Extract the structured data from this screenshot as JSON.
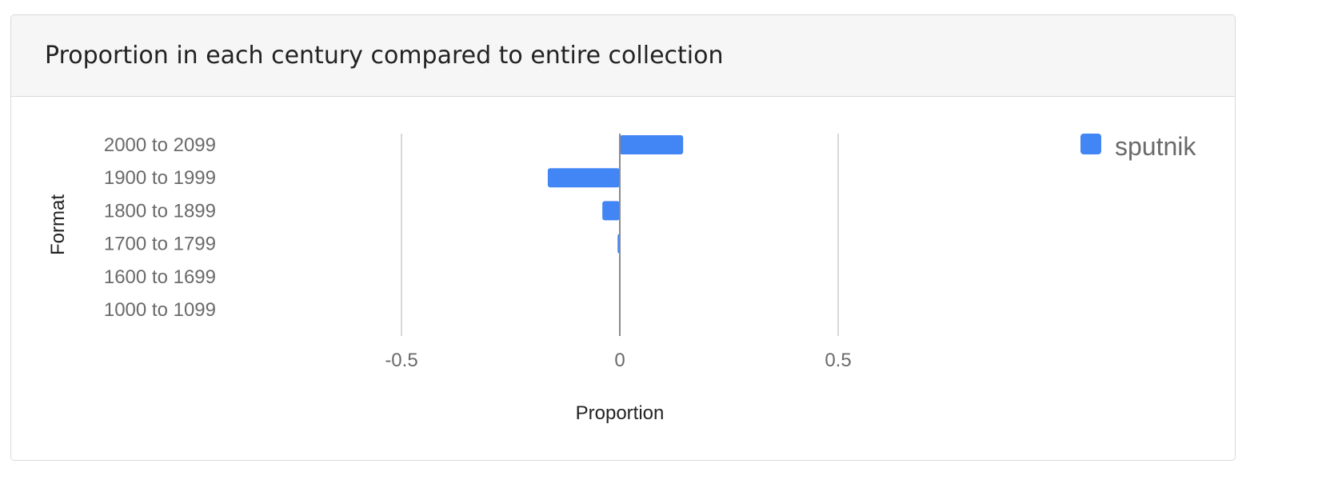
{
  "panel": {
    "title": "Proportion in each century compared to entire collection"
  },
  "chart_data": {
    "type": "bar",
    "orientation": "horizontal",
    "title": "",
    "xlabel": "Proportion",
    "ylabel": "Format",
    "categories": [
      "2000 to 2099",
      "1900 to 1999",
      "1800 to 1899",
      "1700 to 1799",
      "1600 to 1699",
      "1000 to 1099"
    ],
    "series": [
      {
        "name": "sputnik",
        "color": "#4285f4",
        "values": [
          0.145,
          -0.165,
          -0.04,
          -0.005,
          0.0,
          0.0
        ]
      }
    ],
    "xlim": [
      -0.5,
      0.5
    ],
    "xticks": [
      -0.5,
      0,
      0.5
    ],
    "xtick_labels": [
      "-0.5",
      "0",
      "0.5"
    ],
    "grid": true,
    "legend_position": "top-right"
  }
}
